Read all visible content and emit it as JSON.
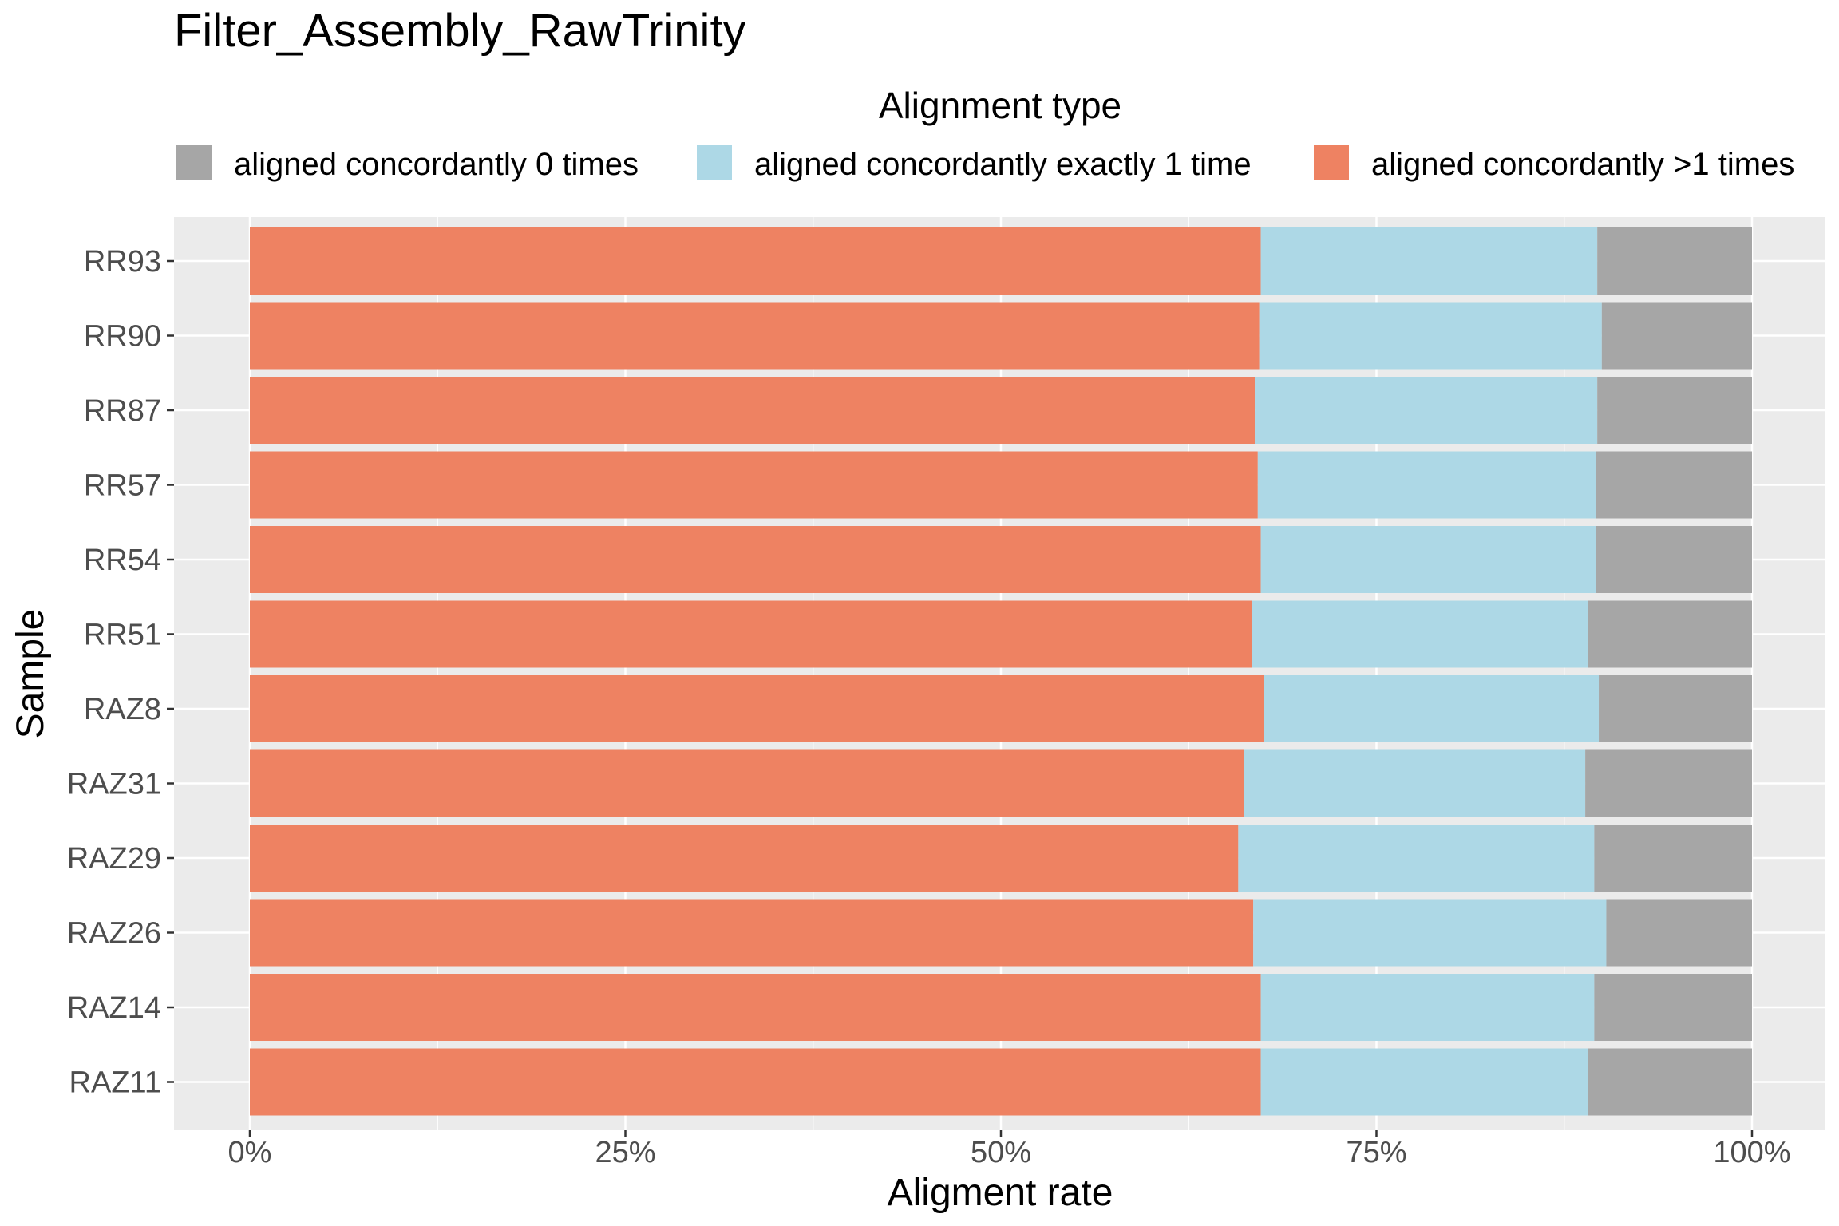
{
  "chart_data": {
    "type": "bar",
    "orientation": "horizontal",
    "stacked": true,
    "title": "Filter_Assembly_RawTrinity",
    "xlabel": "Aligment rate",
    "ylabel": "Sample",
    "xlim": [
      0,
      1
    ],
    "x_ticks": [
      "0%",
      "25%",
      "50%",
      "75%",
      "100%"
    ],
    "grid": true,
    "legend": {
      "title": "Alignment type",
      "position": "top",
      "entries": [
        {
          "label": "aligned concordantly 0 times",
          "color": "#a6a6a6"
        },
        {
          "label": "aligned concordantly exactly 1 time",
          "color": "#add8e6"
        },
        {
          "label": "aligned concordantly >1 times",
          "color": "#ee8262"
        }
      ]
    },
    "categories": [
      "RR93",
      "RR90",
      "RR87",
      "RR57",
      "RR54",
      "RR51",
      "RAZ8",
      "RAZ31",
      "RAZ29",
      "RAZ26",
      "RAZ14",
      "RAZ11"
    ],
    "series": [
      {
        "name": "aligned concordantly >1 times",
        "color": "#ee8262",
        "values": [
          0.673,
          0.672,
          0.669,
          0.671,
          0.673,
          0.667,
          0.675,
          0.662,
          0.658,
          0.668,
          0.673,
          0.673
        ]
      },
      {
        "name": "aligned concordantly exactly 1 time",
        "color": "#add8e6",
        "values": [
          0.224,
          0.228,
          0.228,
          0.225,
          0.223,
          0.224,
          0.223,
          0.227,
          0.237,
          0.235,
          0.222,
          0.218
        ]
      },
      {
        "name": "aligned concordantly 0 times",
        "color": "#a6a6a6",
        "values": [
          0.103,
          0.1,
          0.103,
          0.104,
          0.104,
          0.109,
          0.102,
          0.111,
          0.105,
          0.097,
          0.105,
          0.109
        ]
      }
    ]
  }
}
